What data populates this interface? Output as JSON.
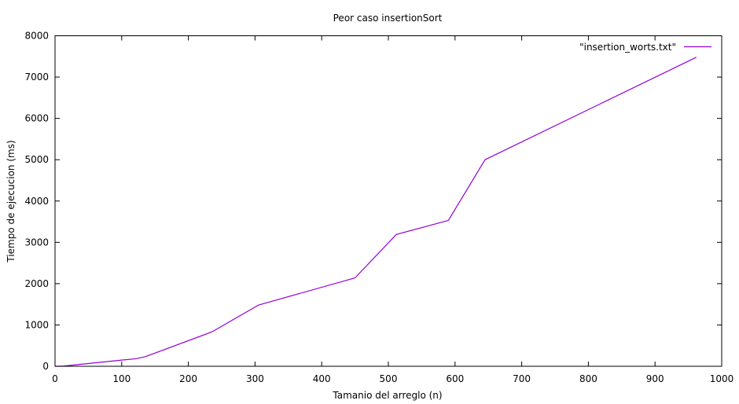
{
  "chart_data": {
    "type": "line",
    "title": "Peor caso insertionSort",
    "xlabel": "Tamanio del arreglo (n)",
    "ylabel": "Tiempo de ejecucion (ms)",
    "xlim": [
      0,
      1000
    ],
    "ylim": [
      0,
      8000
    ],
    "xticks": [
      0,
      100,
      200,
      300,
      400,
      500,
      600,
      700,
      800,
      900,
      1000
    ],
    "yticks": [
      0,
      1000,
      2000,
      3000,
      4000,
      5000,
      6000,
      7000,
      8000
    ],
    "grid": false,
    "legend_position": "top-right",
    "series": [
      {
        "name": "\"insertion_worts.txt\"",
        "color": "#9400d3",
        "x": [
          0,
          10,
          100,
          120,
          135,
          235,
          305,
          450,
          512,
          590,
          645,
          962
        ],
        "y": [
          0,
          0,
          150,
          180,
          230,
          830,
          1480,
          2140,
          3190,
          3530,
          5000,
          7480
        ]
      }
    ]
  }
}
